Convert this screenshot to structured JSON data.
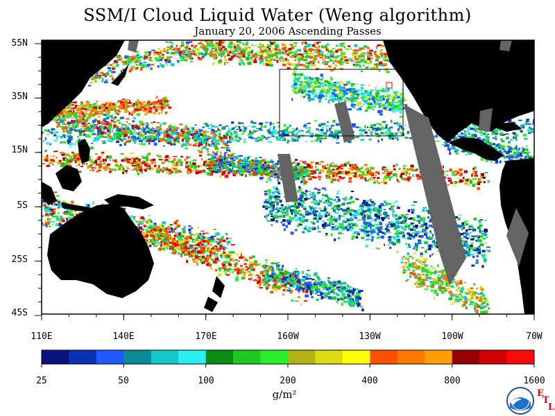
{
  "title": "SSM/I Cloud Liquid Water (Weng algorithm)",
  "subtitle": "January 20, 2006  Ascending Passes",
  "lat_labels": [
    "55N",
    "35N",
    "15N",
    "5S",
    "25S",
    "45S"
  ],
  "lon_labels": [
    "110E",
    "140E",
    "170E",
    "160W",
    "130W",
    "100W",
    "70W"
  ],
  "colorbar": {
    "tick_labels": [
      "25",
      "50",
      "100",
      "200",
      "400",
      "800",
      "1600"
    ],
    "colors": [
      "#0a147d",
      "#0a32b4",
      "#1e5aff",
      "#0a8c96",
      "#14c8c8",
      "#28f0f0",
      "#0a8c14",
      "#1ec81e",
      "#28f028",
      "#b4b414",
      "#dcdc14",
      "#ffff00",
      "#ff5000",
      "#ff7800",
      "#ffa000",
      "#960000",
      "#d20000",
      "#ff0a0a"
    ],
    "units": "g/m²"
  },
  "colors": {
    "land": "#000000",
    "no_data": "#646464",
    "ocean_clear": "#ffffff"
  },
  "logo": {
    "icon": "noaa-logo",
    "lettering": "NOAA"
  },
  "etl_letters": [
    "E",
    "T",
    "L"
  ]
}
